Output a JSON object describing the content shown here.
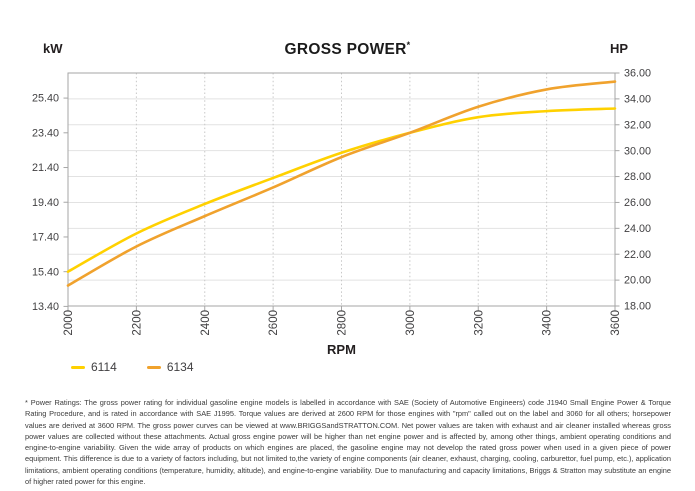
{
  "chart_data": {
    "type": "line",
    "title": "GROSS POWER",
    "title_note_symbol": "*",
    "xlabel": "RPM",
    "x": [
      2000,
      2200,
      2400,
      2600,
      2800,
      3000,
      3200,
      3400,
      3600
    ],
    "x_tick_labels": [
      "2000",
      "2200",
      "2400",
      "2600",
      "2800",
      "3000",
      "3200",
      "3400",
      "3600"
    ],
    "x_range": [
      2000,
      3600
    ],
    "left_axis": {
      "unit": "kW",
      "tick_labels": [
        "13.40",
        "15.40",
        "17.40",
        "19.40",
        "21.40",
        "23.40",
        "25.40"
      ]
    },
    "right_axis": {
      "unit": "HP",
      "tick_labels": [
        "18.00",
        "20.00",
        "22.00",
        "24.00",
        "26.00",
        "28.00",
        "30.00",
        "32.00",
        "34.00",
        "36.00"
      ],
      "min": 18,
      "max": 36
    },
    "kw_to_hp_factor": 1.34102,
    "series": [
      {
        "name": "6114",
        "color": "#FFD100",
        "unit": "kW",
        "values": [
          15.4,
          17.6,
          19.3,
          20.8,
          22.25,
          23.4,
          24.3,
          24.65,
          24.8
        ]
      },
      {
        "name": "6134",
        "color": "#F0A22D",
        "unit": "kW",
        "values": [
          14.6,
          16.85,
          18.6,
          20.25,
          22.0,
          23.4,
          24.9,
          25.9,
          26.35
        ]
      }
    ],
    "grid": {
      "horizontal_lines_at": "right_axis_ticks",
      "horizontal_style": "solid",
      "vertical_style": "dotted"
    },
    "legend_position": "bottom-left"
  },
  "footnote": {
    "text": "* Power Ratings: The gross power rating for individual gasoline engine models is labelled in accordance with SAE (Society of Automotive Engineers) code J1940 Small Engine Power & Torque Rating Procedure, and is rated in accordance with SAE J1995. Torque values are derived at 2600 RPM for those engines with \"rpm\" called out on the label and 3060 for all others; horsepower values are derived at 3600 RPM. The gross power curves can be viewed at www.BRIGGSandSTRATTON.COM. Net power values are taken with exhaust and air cleaner installed whereas gross power values are collected without these attachments. Actual gross engine power will be higher than net engine power and is affected by, among other things, ambient operating conditions and engine-to-engine variability. Given the wide array of products on which engines are placed, the gasoline engine may not develop the rated gross power when used in a given piece of power equipment. This difference is due to a variety of factors including, but not limited to,the variety of engine components (air cleaner, exhaust, charging, cooling, carburettor, fuel pump, etc.), application limitations, ambient operating conditions (temperature, humidity, altitude), and engine-to-engine variability. Due to manufacturing and capacity limitations, Briggs & Stratton may substitute an engine of higher rated power for this engine."
  }
}
